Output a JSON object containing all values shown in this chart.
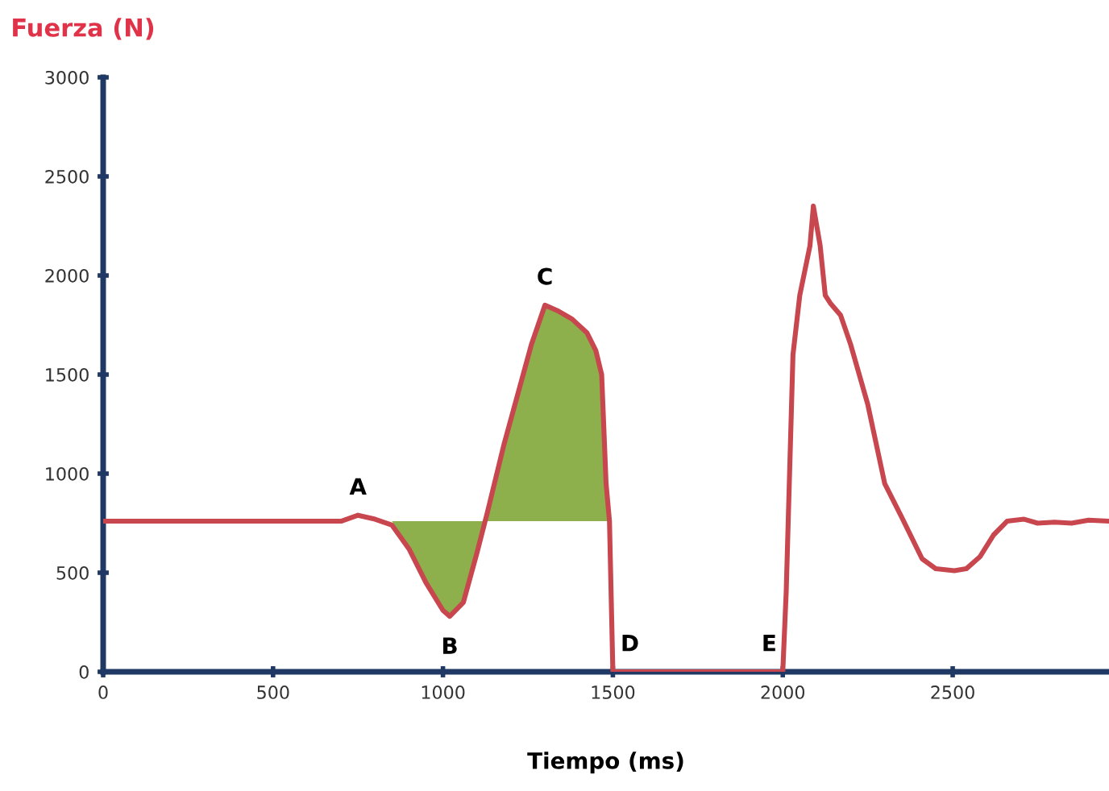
{
  "chart_data": {
    "type": "line",
    "ylabel": "Fuerza (N)",
    "xlabel": "Tiempo (ms)",
    "xlim": [
      0,
      2960
    ],
    "ylim": [
      0,
      3000
    ],
    "xticks": [
      0,
      500,
      1000,
      1500,
      2000,
      2500
    ],
    "yticks": [
      0,
      500,
      1000,
      1500,
      2000,
      2500,
      3000
    ],
    "grid": false,
    "marker": "none",
    "line_style": "solid",
    "series": [
      {
        "color": "#c8474f",
        "x": [
          0,
          700,
          750,
          800,
          850,
          900,
          950,
          1000,
          1020,
          1060,
          1100,
          1130,
          1180,
          1220,
          1260,
          1300,
          1340,
          1380,
          1424,
          1450,
          1467,
          1480,
          1490,
          1500,
          1510,
          1990,
          2000,
          2010,
          2015,
          2030,
          2050,
          2080,
          2090,
          2110,
          2125,
          2140,
          2170,
          2200,
          2250,
          2300,
          2350,
          2410,
          2450,
          2505,
          2540,
          2580,
          2620,
          2660,
          2710,
          2750,
          2800,
          2850,
          2900,
          2960
        ],
        "values": [
          760,
          760,
          790,
          770,
          740,
          620,
          450,
          310,
          280,
          350,
          600,
          800,
          1150,
          1400,
          1650,
          1850,
          1820,
          1780,
          1710,
          1620,
          1500,
          950,
          760,
          0,
          0,
          0,
          0,
          400,
          700,
          1600,
          1900,
          2150,
          2350,
          2150,
          1900,
          1860,
          1800,
          1650,
          1350,
          950,
          780,
          570,
          520,
          510,
          520,
          580,
          690,
          760,
          770,
          750,
          755,
          750,
          765,
          760
        ]
      },
      {
        "type": "area",
        "color": "#8db04c",
        "x": [
          850,
          900,
          950,
          1000,
          1020,
          1060,
          1100,
          1130,
          1180,
          1220,
          1260,
          1300,
          1340,
          1380,
          1424,
          1450,
          1467,
          1480,
          1490
        ],
        "values": [
          760,
          620,
          450,
          310,
          280,
          350,
          600,
          800,
          1150,
          1400,
          1650,
          1850,
          1820,
          1780,
          1710,
          1620,
          1500,
          950,
          760
        ]
      }
    ],
    "annotations": [
      {
        "text": "A",
        "x": 750,
        "y": 790
      },
      {
        "text": "B",
        "x": 1020,
        "y": 280
      },
      {
        "text": "C",
        "x": 1300,
        "y": 1850
      },
      {
        "text": "D",
        "x": 1550,
        "y": 0
      },
      {
        "text": "E",
        "x": 1960,
        "y": 0
      }
    ]
  }
}
